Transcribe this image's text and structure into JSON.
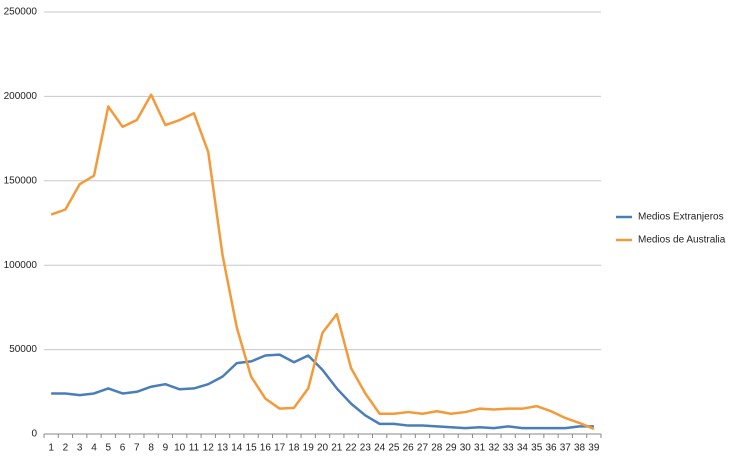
{
  "chart_data": {
    "type": "line",
    "categories": [
      1,
      2,
      3,
      4,
      5,
      6,
      7,
      8,
      9,
      10,
      11,
      12,
      13,
      14,
      15,
      16,
      17,
      18,
      19,
      20,
      21,
      22,
      23,
      24,
      25,
      26,
      27,
      28,
      29,
      30,
      31,
      32,
      33,
      34,
      35,
      36,
      37,
      38,
      39
    ],
    "series": [
      {
        "name": "Medios Extranjeros",
        "color": "#4a7ebb",
        "values": [
          24000,
          24000,
          23000,
          24000,
          27000,
          24000,
          25000,
          28000,
          29500,
          26500,
          27000,
          29500,
          34000,
          42000,
          43000,
          46500,
          47000,
          42500,
          46500,
          38000,
          27000,
          18000,
          11000,
          6000,
          6000,
          5000,
          5000,
          4500,
          4000,
          3500,
          4000,
          3500,
          4500,
          3500,
          3500,
          3500,
          3500,
          4500,
          4500
        ]
      },
      {
        "name": "Medios de Australia",
        "color": "#f39a3a",
        "values": [
          130000,
          133000,
          148000,
          153000,
          194000,
          182000,
          186000,
          201000,
          183000,
          186000,
          190000,
          167000,
          106000,
          63000,
          34000,
          21000,
          15000,
          15500,
          27000,
          60000,
          71000,
          39000,
          24000,
          12000,
          12000,
          13000,
          12000,
          13500,
          12000,
          13000,
          15000,
          14500,
          15000,
          15000,
          16500,
          13500,
          9500,
          6500,
          3000
        ]
      }
    ],
    "ylim": [
      0,
      250000
    ],
    "yticks": [
      0,
      50000,
      100000,
      150000,
      200000,
      250000
    ],
    "grid": true,
    "legend": "right"
  }
}
